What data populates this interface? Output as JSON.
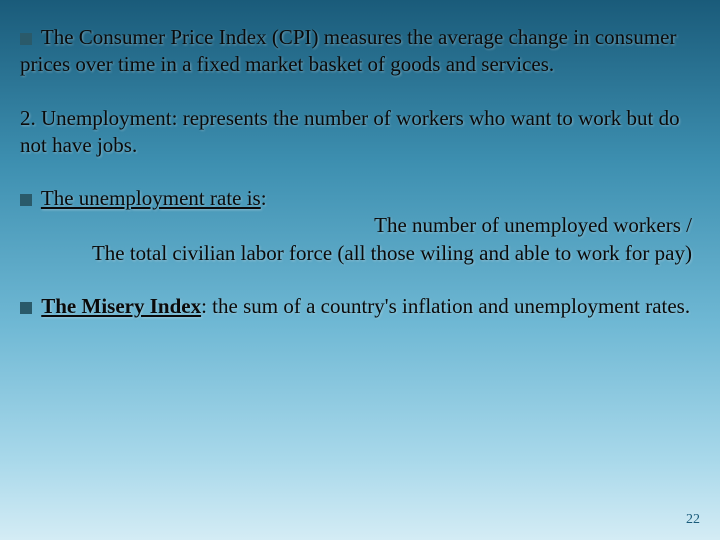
{
  "slide": {
    "background_gradient": [
      "#1a5b7a",
      "#3d8fb0",
      "#6fb8d4",
      "#a8d8ea",
      "#d4ecf5"
    ],
    "bullet_color": "#2a5a6a",
    "text_color": "#0a0a0a",
    "font_family": "Georgia, serif",
    "body_fontsize": 21,
    "pagenum_fontsize": 14,
    "pagenum_color": "#1a5b7a"
  },
  "blocks": {
    "cpi": {
      "text": "The Consumer Price Index (CPI) measures the average change in consumer prices over time in a fixed market basket of goods and services."
    },
    "unemployment_def": {
      "text": "2. Unemployment: represents the number of workers who want to work but do not have jobs."
    },
    "unemployment_rate": {
      "heading": "The unemployment rate is",
      "line1": "The number of unemployed workers /",
      "line2": "The total civilian labor force (all those wiling and able to work for pay)"
    },
    "misery_index": {
      "heading": "The Misery Index",
      "text": ": the sum of a country's inflation and unemployment rates."
    }
  },
  "page_number": "22"
}
